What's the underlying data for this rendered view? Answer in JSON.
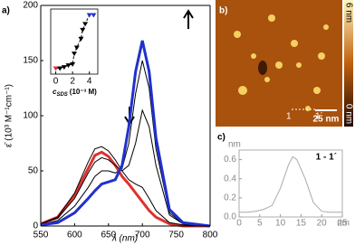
{
  "chart_data": [
    {
      "type": "line",
      "panel_label": "a)",
      "x_label": "λ (nm)",
      "y_label": "ε̄ (10³ M⁻¹cm⁻¹)",
      "x": [
        550,
        575,
        600,
        620,
        630,
        640,
        650,
        660,
        670,
        680,
        690,
        700,
        710,
        720,
        740,
        760,
        800
      ],
      "series": [
        {
          "color": "#e03030",
          "values": [
            2,
            8,
            28,
            52,
            64,
            67,
            63,
            55,
            45,
            38,
            30,
            22,
            14,
            8,
            2,
            0,
            0
          ]
        },
        {
          "color": "#000000",
          "values": [
            2,
            8,
            30,
            58,
            70,
            72,
            68,
            60,
            50,
            42,
            38,
            35,
            25,
            14,
            3,
            1,
            0
          ]
        },
        {
          "color": "#000000",
          "values": [
            2,
            7,
            25,
            48,
            58,
            62,
            60,
            55,
            50,
            55,
            75,
            105,
            90,
            55,
            10,
            2,
            0
          ]
        },
        {
          "color": "#000000",
          "values": [
            1,
            5,
            18,
            35,
            45,
            50,
            50,
            48,
            52,
            75,
            120,
            150,
            125,
            70,
            12,
            2,
            0
          ]
        },
        {
          "color": "#2030d0",
          "values": [
            1,
            3,
            12,
            25,
            32,
            38,
            40,
            42,
            55,
            90,
            140,
            168,
            140,
            80,
            15,
            3,
            0
          ]
        }
      ],
      "xlim": [
        550,
        800
      ],
      "xticks": [
        550,
        600,
        650,
        700,
        750,
        800
      ],
      "ylim": [
        0,
        200
      ],
      "yticks": [
        0,
        50,
        100,
        150,
        200
      ]
    },
    {
      "type": "scatter",
      "x_label": [
        "c",
        "SDS",
        "(10⁻³ M)"
      ],
      "line_style": "dashed",
      "x": [
        0,
        0.5,
        1,
        1.5,
        2,
        2.2,
        2.5,
        3,
        3.2,
        3.5,
        4,
        4.5
      ],
      "values": [
        0.1,
        0.1,
        0.12,
        0.15,
        0.17,
        0.35,
        0.45,
        0.6,
        0.75,
        0.85,
        1,
        1
      ],
      "colors": [
        "#e03030",
        "#000000",
        "#000000",
        "#000000",
        "#000000",
        "#000000",
        "#000000",
        "#000000",
        "#000000",
        "#000000",
        "#2030d0",
        "#2030d0"
      ],
      "xlim": [
        -0.6,
        5
      ],
      "xticks": [
        0,
        2,
        4
      ],
      "ylim": [
        0,
        1.1
      ]
    },
    {
      "type": "line",
      "panel_label": "c)",
      "annotation": "1 - 1´",
      "x_unit": "nm",
      "y_unit": "nm",
      "color": "#aaaaaa",
      "x": [
        0,
        2,
        4,
        6,
        8,
        10,
        12,
        13,
        14,
        16,
        18,
        20,
        22,
        24,
        25
      ],
      "values": [
        0.05,
        0.05,
        0.06,
        0.08,
        0.12,
        0.3,
        0.55,
        0.63,
        0.6,
        0.4,
        0.15,
        0.06,
        0.05,
        0.05,
        0.05
      ],
      "xlim": [
        0,
        25
      ],
      "xticks": [
        0,
        5,
        10,
        15,
        20,
        25
      ],
      "ylim": [
        0,
        0.7
      ],
      "yticks": [
        {
          "value": 0,
          "label": "0.0"
        },
        0.2,
        0.4,
        0.6
      ]
    }
  ],
  "image": {
    "panel_label": "b)",
    "scale_bar": "25 nm",
    "colorbar_top": "6 nm",
    "colorbar_bottom": "0 nm",
    "marker_start": "1",
    "marker_end": "1´"
  }
}
